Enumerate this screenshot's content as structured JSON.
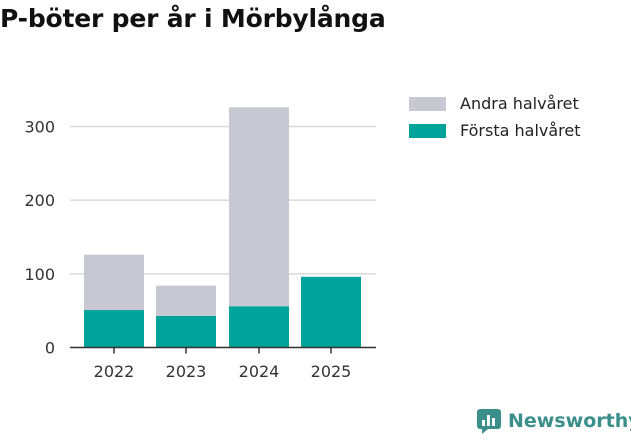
{
  "chart_data": {
    "type": "bar",
    "stacked": true,
    "title": "P-böter per år i Mörbylånga",
    "categories": [
      "2022",
      "2023",
      "2024",
      "2025"
    ],
    "series": [
      {
        "name": "Första halvåret",
        "color": "#00a39a",
        "values": [
          51,
          43,
          56,
          96
        ]
      },
      {
        "name": "Andra halvåret",
        "color": "#c8c8d2",
        "values": [
          75,
          41,
          270,
          0
        ]
      }
    ],
    "legend_order": [
      "Andra halvåret",
      "Första halvåret"
    ],
    "yticks": [
      0,
      100,
      200,
      300
    ],
    "ylim": [
      0,
      340
    ],
    "xlabel": "",
    "ylabel": "",
    "legend_position": "right"
  },
  "brand": {
    "name": "Newsworthy",
    "color": "#3a8f8a"
  }
}
